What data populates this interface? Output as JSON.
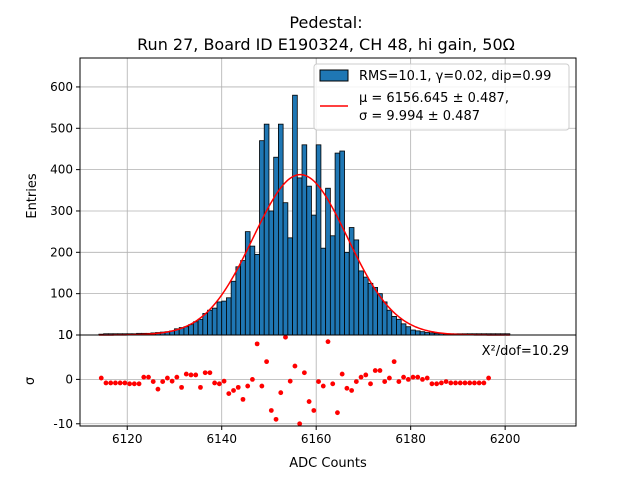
{
  "chart_data": [
    {
      "type": "bar",
      "panel": "top",
      "title_line1": "Pedestal:",
      "title_line2": "Run 27, Board ID E190324, CH 48, hi gain, 50Ω",
      "ylabel": "Entries",
      "ylim": [
        0,
        670
      ],
      "xlim": [
        6110,
        6215
      ],
      "grid": true,
      "yticks": [
        0,
        100,
        200,
        300,
        400,
        500,
        600
      ],
      "legend_position": "top-right",
      "histogram": {
        "name": "RMS=10.1, γ=0.02, dip=0.99",
        "color": "#1f77b4",
        "bin_width": 1,
        "bin_starts": [
          6114,
          6115,
          6116,
          6117,
          6118,
          6119,
          6120,
          6121,
          6122,
          6123,
          6124,
          6125,
          6126,
          6127,
          6128,
          6129,
          6130,
          6131,
          6132,
          6133,
          6134,
          6135,
          6136,
          6137,
          6138,
          6139,
          6140,
          6141,
          6142,
          6143,
          6144,
          6145,
          6146,
          6147,
          6148,
          6149,
          6150,
          6151,
          6152,
          6153,
          6154,
          6155,
          6156,
          6157,
          6158,
          6159,
          6160,
          6161,
          6162,
          6163,
          6164,
          6165,
          6166,
          6167,
          6168,
          6169,
          6170,
          6171,
          6172,
          6173,
          6174,
          6175,
          6176,
          6177,
          6178,
          6179,
          6180,
          6181,
          6182,
          6183,
          6184,
          6185,
          6186,
          6187,
          6188,
          6189,
          6190,
          6191,
          6192,
          6193,
          6194,
          6195,
          6196,
          6197,
          6198,
          6199,
          6200
        ],
        "values": [
          2,
          3,
          3,
          3,
          3,
          3,
          3,
          3,
          4,
          4,
          4,
          5,
          6,
          7,
          8,
          10,
          15,
          18,
          20,
          25,
          32,
          38,
          52,
          60,
          65,
          80,
          82,
          90,
          130,
          165,
          180,
          250,
          215,
          195,
          470,
          510,
          300,
          430,
          510,
          320,
          235,
          580,
          380,
          460,
          360,
          290,
          460,
          210,
          355,
          240,
          440,
          445,
          200,
          260,
          230,
          155,
          140,
          125,
          115,
          100,
          80,
          60,
          45,
          38,
          27,
          20,
          12,
          10,
          8,
          6,
          5,
          4,
          4,
          3,
          3,
          3,
          3,
          3,
          3,
          3,
          3,
          3,
          3,
          3,
          3,
          3,
          3
        ]
      },
      "fit": {
        "name_line1": "μ = 6156.645 ± 0.487,",
        "name_line2": "σ = 9.994 ± 0.487",
        "color": "#ff0000",
        "mu": 6156.645,
        "sigma": 9.994,
        "amplitude": 388,
        "x_range": [
          6114,
          6201
        ]
      }
    },
    {
      "type": "scatter",
      "panel": "bottom",
      "xlabel": "ADC Counts",
      "ylabel": "σ",
      "ylim": [
        -10.5,
        10
      ],
      "xlim": [
        6110,
        6215
      ],
      "grid": true,
      "yticks": [
        -10,
        0,
        10
      ],
      "xticks": [
        6120,
        6140,
        6160,
        6180,
        6200
      ],
      "annotation": "X²/dof=10.29",
      "marker_color": "#ff0000",
      "points": [
        [
          6114.5,
          0.3
        ],
        [
          6115.5,
          -0.8
        ],
        [
          6116.5,
          -0.8
        ],
        [
          6117.5,
          -0.8
        ],
        [
          6118.5,
          -0.8
        ],
        [
          6119.5,
          -0.8
        ],
        [
          6120.5,
          -1
        ],
        [
          6121.5,
          -1
        ],
        [
          6122.5,
          -1
        ],
        [
          6123.5,
          0.5
        ],
        [
          6124.5,
          0.5
        ],
        [
          6125.5,
          -0.5
        ],
        [
          6126.5,
          -2.2
        ],
        [
          6127.5,
          -0.5
        ],
        [
          6128.5,
          0.3
        ],
        [
          6129.5,
          -0.4
        ],
        [
          6130.5,
          0.5
        ],
        [
          6131.5,
          -1.8
        ],
        [
          6132.5,
          1.2
        ],
        [
          6133.5,
          1
        ],
        [
          6134.5,
          1
        ],
        [
          6135.5,
          -1.8
        ],
        [
          6136.5,
          1.5
        ],
        [
          6137.5,
          1.5
        ],
        [
          6138.5,
          -0.8
        ],
        [
          6139.5,
          -1
        ],
        [
          6140.5,
          -0.4
        ],
        [
          6141.5,
          -3.2
        ],
        [
          6142.5,
          -2.5
        ],
        [
          6143.5,
          -1.8
        ],
        [
          6144.5,
          -4.5
        ],
        [
          6145.5,
          -1.5
        ],
        [
          6146.5,
          0
        ],
        [
          6147.5,
          8
        ],
        [
          6148.5,
          -1.5
        ],
        [
          6149.5,
          4
        ],
        [
          6150.5,
          -7
        ],
        [
          6151.5,
          -9
        ],
        [
          6152.5,
          -3
        ],
        [
          6153.5,
          9.5
        ],
        [
          6154.5,
          -0.4
        ],
        [
          6155.5,
          3
        ],
        [
          6156.5,
          -10
        ],
        [
          6157.5,
          1.5
        ],
        [
          6158.5,
          -5
        ],
        [
          6159.5,
          -7
        ],
        [
          6160.5,
          -0.5
        ],
        [
          6161.5,
          -1.5
        ],
        [
          6162.5,
          8.5
        ],
        [
          6163.5,
          -1
        ],
        [
          6164.5,
          -7.5
        ],
        [
          6165.5,
          1.2
        ],
        [
          6166.5,
          -2
        ],
        [
          6167.5,
          -2.5
        ],
        [
          6168.5,
          -0.5
        ],
        [
          6169.5,
          0.5
        ],
        [
          6170.5,
          1
        ],
        [
          6171.5,
          -1
        ],
        [
          6172.5,
          2
        ],
        [
          6173.5,
          2
        ],
        [
          6174.5,
          -0.5
        ],
        [
          6175.5,
          0.3
        ],
        [
          6176.5,
          4
        ],
        [
          6177.5,
          -0.5
        ],
        [
          6178.5,
          0.5
        ],
        [
          6179.5,
          0
        ],
        [
          6180.5,
          0.5
        ],
        [
          6181.5,
          0.5
        ],
        [
          6182.5,
          0
        ],
        [
          6183.5,
          0.3
        ],
        [
          6184.5,
          -1
        ],
        [
          6185.5,
          -1
        ],
        [
          6186.5,
          -0.8
        ],
        [
          6187.5,
          -0.5
        ],
        [
          6188.5,
          -0.8
        ],
        [
          6189.5,
          -0.8
        ],
        [
          6190.5,
          -0.8
        ],
        [
          6191.5,
          -0.8
        ],
        [
          6192.5,
          -0.8
        ],
        [
          6193.5,
          -0.8
        ],
        [
          6194.5,
          -0.8
        ],
        [
          6195.5,
          -0.8
        ],
        [
          6196.5,
          0.3
        ]
      ]
    }
  ]
}
